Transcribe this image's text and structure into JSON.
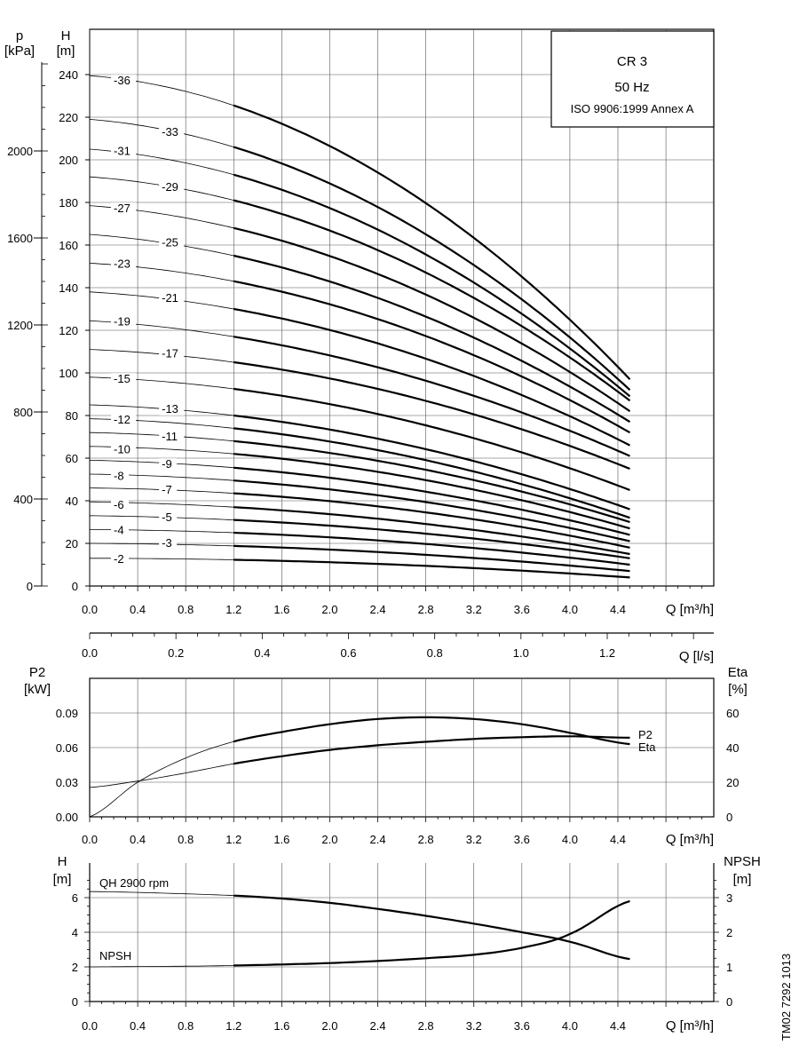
{
  "title_box": {
    "title": "CR 3",
    "frequency": "50 Hz",
    "standard": "ISO 9906:1999 Annex A"
  },
  "doc_code": "TM02 7292 1013",
  "chart_data": [
    {
      "id": "head",
      "type": "line",
      "x_label": "Q [m³/h]",
      "y_label_top": "H",
      "y_label_unit": "[m]",
      "y2_label_top": "p",
      "y2_label_unit": "[kPa]",
      "x_ticks": [
        "0.0",
        "0.4",
        "0.8",
        "1.2",
        "1.6",
        "2.0",
        "2.4",
        "2.8",
        "3.2",
        "3.6",
        "4.0",
        "4.4"
      ],
      "y_ticks": [
        "0",
        "20",
        "40",
        "60",
        "80",
        "100",
        "120",
        "140",
        "160",
        "180",
        "200",
        "220",
        "240"
      ],
      "y2_ticks": [
        "0",
        "400",
        "800",
        "1200",
        "1600",
        "2000"
      ],
      "xlim": [
        0,
        5.2
      ],
      "ylim": [
        0,
        260
      ],
      "y2lim": [
        0,
        2600
      ],
      "flow_range": [
        1.2,
        4.5
      ],
      "series": [
        {
          "name": "-2",
          "label_x": 0.2,
          "label_y": 12.5,
          "h0": 13,
          "h12": 12.3,
          "h45": 4
        },
        {
          "name": "-3",
          "label_x": 0.6,
          "label_y": 20,
          "h0": 20,
          "h12": 18.8,
          "h45": 7
        },
        {
          "name": "-4",
          "label_x": 0.2,
          "label_y": 26,
          "h0": 26.5,
          "h12": 25,
          "h45": 10
        },
        {
          "name": "-5",
          "label_x": 0.6,
          "label_y": 32,
          "h0": 33,
          "h12": 31,
          "h45": 13
        },
        {
          "name": "-6",
          "label_x": 0.2,
          "label_y": 38,
          "h0": 39.5,
          "h12": 37,
          "h45": 15
        },
        {
          "name": "-7",
          "label_x": 0.6,
          "label_y": 45,
          "h0": 46,
          "h12": 43.5,
          "h45": 18
        },
        {
          "name": "-8",
          "label_x": 0.2,
          "label_y": 51.5,
          "h0": 52.5,
          "h12": 49.5,
          "h45": 21
        },
        {
          "name": "-9",
          "label_x": 0.6,
          "label_y": 57,
          "h0": 59,
          "h12": 55.5,
          "h45": 24
        },
        {
          "name": "-10",
          "label_x": 0.2,
          "label_y": 64,
          "h0": 65.5,
          "h12": 62,
          "h45": 27
        },
        {
          "name": "-11",
          "label_x": 0.6,
          "label_y": 70,
          "h0": 72,
          "h12": 68,
          "h45": 30
        },
        {
          "name": "-12",
          "label_x": 0.2,
          "label_y": 78,
          "h0": 78.5,
          "h12": 74,
          "h45": 32
        },
        {
          "name": "-13",
          "label_x": 0.6,
          "label_y": 83,
          "h0": 85,
          "h12": 80,
          "h45": 36
        },
        {
          "name": "-15",
          "label_x": 0.2,
          "label_y": 97,
          "h0": 98,
          "h12": 92.5,
          "h45": 45
        },
        {
          "name": "-17",
          "label_x": 0.6,
          "label_y": 109,
          "h0": 111,
          "h12": 105,
          "h45": 55
        },
        {
          "name": "-19",
          "label_x": 0.2,
          "label_y": 124,
          "h0": 124.5,
          "h12": 117,
          "h45": 61
        },
        {
          "name": "-21",
          "label_x": 0.6,
          "label_y": 135,
          "h0": 138,
          "h12": 130,
          "h45": 66
        },
        {
          "name": "-23",
          "label_x": 0.2,
          "label_y": 151,
          "h0": 151.5,
          "h12": 143,
          "h45": 72
        },
        {
          "name": "-25",
          "label_x": 0.6,
          "label_y": 161,
          "h0": 165,
          "h12": 155,
          "h45": 77
        },
        {
          "name": "-27",
          "label_x": 0.2,
          "label_y": 177,
          "h0": 178.5,
          "h12": 168,
          "h45": 82
        },
        {
          "name": "-29",
          "label_x": 0.6,
          "label_y": 187,
          "h0": 192,
          "h12": 181,
          "h45": 87
        },
        {
          "name": "-31",
          "label_x": 0.2,
          "label_y": 204,
          "h0": 205,
          "h12": 193,
          "h45": 89
        },
        {
          "name": "-33",
          "label_x": 0.6,
          "label_y": 213,
          "h0": 219,
          "h12": 206,
          "h45": 92
        },
        {
          "name": "-36",
          "label_x": 0.2,
          "label_y": 237,
          "h0": 239.5,
          "h12": 225.5,
          "h45": 97
        }
      ]
    },
    {
      "id": "ls_axis",
      "type": "axis",
      "x_label": "Q [l/s]",
      "x_ticks": [
        "0.0",
        "0.2",
        "0.4",
        "0.6",
        "0.8",
        "1.0",
        "1.2"
      ]
    },
    {
      "id": "power",
      "type": "line",
      "x_label": "Q [m³/h]",
      "y_label_top": "P2",
      "y_label_unit": "[kW]",
      "y2_label_top": "Eta",
      "y2_label_unit": "[%]",
      "x_ticks": [
        "0.0",
        "0.4",
        "0.8",
        "1.2",
        "1.6",
        "2.0",
        "2.4",
        "2.8",
        "3.2",
        "3.6",
        "4.0",
        "4.4"
      ],
      "y_ticks": [
        "0.00",
        "0.03",
        "0.06",
        "0.09"
      ],
      "y2_ticks": [
        "0",
        "20",
        "40",
        "60"
      ],
      "xlim": [
        0,
        5.2
      ],
      "ylim": [
        0,
        0.1
      ],
      "y2lim": [
        0,
        66.67
      ],
      "series": [
        {
          "name": "P2",
          "axis": "left",
          "x": [
            0,
            0.4,
            0.8,
            1.2,
            1.6,
            2.0,
            2.4,
            2.8,
            3.2,
            3.6,
            4.0,
            4.5
          ],
          "y": [
            0.0255,
            0.031,
            0.038,
            0.046,
            0.0525,
            0.058,
            0.062,
            0.065,
            0.0675,
            0.069,
            0.0698,
            0.0685
          ]
        },
        {
          "name": "Eta",
          "axis": "right",
          "x": [
            0,
            0.4,
            0.8,
            1.2,
            1.6,
            2.0,
            2.4,
            2.8,
            3.2,
            3.6,
            4.0,
            4.5
          ],
          "y": [
            0,
            20,
            34,
            43.5,
            49,
            53.5,
            56.5,
            57.5,
            56.5,
            53.5,
            48.5,
            42
          ]
        }
      ]
    },
    {
      "id": "npsh",
      "type": "line",
      "x_label": "Q [m³/h]",
      "y_label_top": "H",
      "y_label_unit": "[m]",
      "y2_label_top": "NPSH",
      "y2_label_unit": "[m]",
      "x_ticks": [
        "0.0",
        "0.4",
        "0.8",
        "1.2",
        "1.6",
        "2.0",
        "2.4",
        "2.8",
        "3.2",
        "3.6",
        "4.0",
        "4.4"
      ],
      "y_ticks": [
        "0",
        "2",
        "4",
        "6"
      ],
      "y2_ticks": [
        "0",
        "1",
        "2",
        "3"
      ],
      "xlim": [
        0,
        5.2
      ],
      "ylim": [
        0,
        7
      ],
      "y2lim": [
        0,
        3.5
      ],
      "series": [
        {
          "name": "QH 2900 rpm",
          "axis": "left",
          "x": [
            0,
            0.4,
            0.8,
            1.2,
            1.6,
            2.0,
            2.4,
            2.8,
            3.2,
            3.6,
            4.0,
            4.5
          ],
          "y": [
            6.35,
            6.3,
            6.22,
            6.12,
            5.95,
            5.7,
            5.35,
            4.95,
            4.5,
            4.0,
            3.45,
            2.45
          ]
        },
        {
          "name": "NPSH",
          "axis": "right",
          "x": [
            0,
            0.4,
            0.8,
            1.2,
            1.6,
            2.0,
            2.4,
            2.8,
            3.2,
            3.6,
            4.0,
            4.5
          ],
          "y": [
            1.0,
            1.01,
            1.02,
            1.04,
            1.07,
            1.11,
            1.17,
            1.25,
            1.35,
            1.55,
            1.95,
            2.9
          ]
        }
      ]
    }
  ]
}
